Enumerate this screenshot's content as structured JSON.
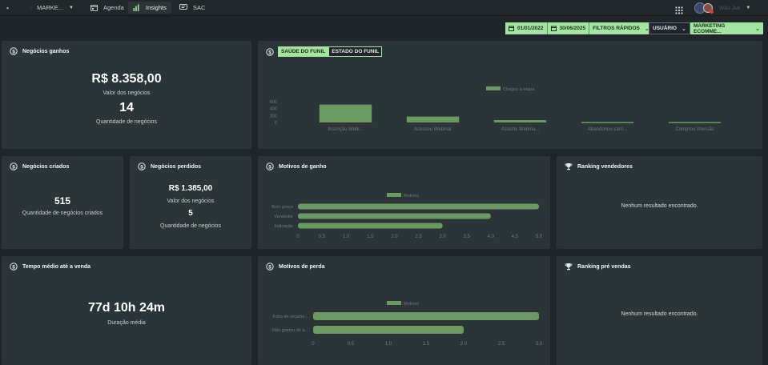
{
  "nav": {
    "items": [
      {
        "label": "MARKE..."
      },
      {
        "label": "Agenda"
      },
      {
        "label": "Insights"
      },
      {
        "label": "SAC"
      }
    ],
    "user_name": "Willo Jub"
  },
  "filters": {
    "date_start": "01/01/2022",
    "date_end": "30/06/2025",
    "quick_filters": "FILTROS RÁPIDOS",
    "user": "USUÁRIO",
    "pipeline": "MARKETING ECOMME..."
  },
  "won": {
    "title": "Negócios ganhos",
    "value": "R$ 8.358,00",
    "value_label": "Valor dos negócios",
    "count": "14",
    "count_label": "Quantidade de negócios"
  },
  "created": {
    "title": "Negócios criados",
    "count": "515",
    "count_label": "Quantidade de negócios criados"
  },
  "lost": {
    "title": "Negócios perdidos",
    "value": "R$ 1.385,00",
    "value_label": "Valor dos negócios",
    "count": "5",
    "count_label": "Quantidade de negócios"
  },
  "avg_time": {
    "title": "Tempo médio até a venda",
    "value": "77d 10h 24m",
    "label": "Duração média"
  },
  "funnel": {
    "tab_health": "SAÚDE DO FUNIL",
    "tab_state": "ESTADO DO FUNIL"
  },
  "win_reasons": {
    "title": "Motivos de ganho"
  },
  "loss_reasons": {
    "title": "Motivos de perda"
  },
  "ranking_sellers": {
    "title": "Ranking vendedores",
    "empty": "Nenhum resultado encontrado."
  },
  "ranking_presales": {
    "title": "Ranking pré vendas",
    "empty": "Nenhum resultado encontrado."
  },
  "colors": {
    "accent": "#a5e3a3",
    "bar": "#6a9a62",
    "card": "#2b3437",
    "background": "#1f2528"
  },
  "chart_data": [
    {
      "type": "bar",
      "legend": "Chegou à etapa",
      "categories": [
        "Inscrição Webi...",
        "Acessou Webinar",
        "Assistiu Webina...",
        "Abandonou carri...",
        "Comprou Imersão"
      ],
      "values": [
        515,
        170,
        68,
        14,
        14
      ],
      "yticks": [
        "0",
        "200",
        "400",
        "600"
      ],
      "ylim": [
        0,
        600
      ]
    },
    {
      "type": "bar",
      "orientation": "horizontal",
      "legend": "Motivos",
      "categories": [
        "Bom preço",
        "Vendedor",
        "Indicação"
      ],
      "values": [
        5,
        4,
        3
      ],
      "xticks": [
        "0",
        "0.5",
        "1.0",
        "1.5",
        "2.0",
        "2.5",
        "3.0",
        "3.5",
        "4.0",
        "4.5",
        "5.0"
      ],
      "xlim": [
        0,
        5
      ]
    },
    {
      "type": "bar",
      "orientation": "horizontal",
      "legend": "Motivos",
      "categories": [
        "Falta de orçame...",
        "Não gostou do a..."
      ],
      "values": [
        3,
        2
      ],
      "xticks": [
        "0",
        "0.5",
        "1.0",
        "1.5",
        "2.0",
        "2.5",
        "3.0"
      ],
      "xlim": [
        0,
        3
      ]
    }
  ]
}
